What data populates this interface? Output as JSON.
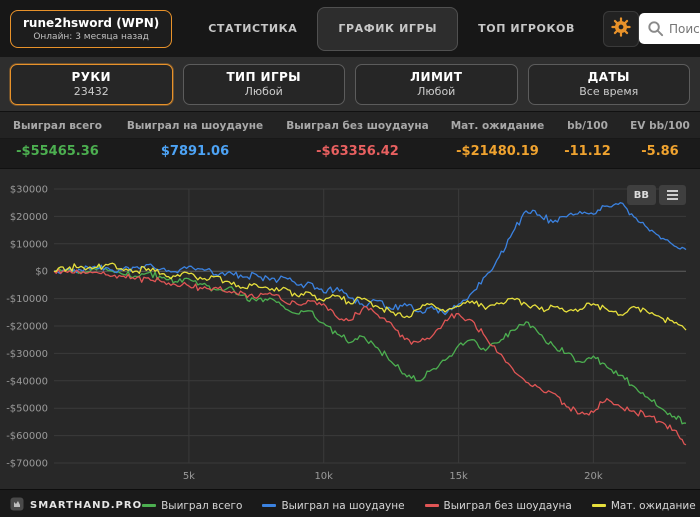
{
  "topbar": {
    "player_button": {
      "name": "rune2hsword (WPN)",
      "status": "Онлайн: 3 месяца назад"
    },
    "tabs": [
      {
        "label": "СТАТИСТИКА",
        "active": false
      },
      {
        "label": "ГРАФИК ИГРЫ",
        "active": true
      },
      {
        "label": "ТОП ИГРОКОВ",
        "active": false
      }
    ],
    "search": {
      "placeholder": "Поиск игрока"
    }
  },
  "filters": [
    {
      "title": "РУКИ",
      "value": "23432",
      "active": true
    },
    {
      "title": "ТИП ИГРЫ",
      "value": "Любой",
      "active": false
    },
    {
      "title": "ЛИМИТ",
      "value": "Любой",
      "active": false
    },
    {
      "title": "ДАТЫ",
      "value": "Все время",
      "active": false
    }
  ],
  "stats": {
    "columns": [
      {
        "label": "Выиграл всего",
        "value": "-$55465.36",
        "color": "#4caf50"
      },
      {
        "label": "Выиграл на шоудауне",
        "value": "$7891.06",
        "color": "#4da3f5"
      },
      {
        "label": "Выиграл без шоудауна",
        "value": "-$63356.42",
        "color": "#e86060"
      },
      {
        "label": "Мат. ожидание",
        "value": "-$21480.19",
        "color": "#f0a32f"
      },
      {
        "label": "bb/100",
        "value": "-11.12",
        "color": "#f0a32f"
      },
      {
        "label": "EV bb/100",
        "value": "-5.86",
        "color": "#f0a32f"
      }
    ]
  },
  "chart_controls": {
    "bb_label": "BB"
  },
  "chart_data": {
    "type": "line",
    "x_max": 23432,
    "ylim": [
      -70000,
      30000
    ],
    "y_tick_step": 10000,
    "y_tick_labels": [
      "$30000",
      "$20000",
      "$10000",
      "$0",
      "-$10000",
      "-$20000",
      "-$30000",
      "-$40000",
      "-$50000",
      "-$60000",
      "-$70000"
    ],
    "x_tick_values": [
      5000,
      10000,
      15000,
      20000
    ],
    "x_tick_labels": [
      "5k",
      "10k",
      "15k",
      "20k"
    ],
    "grid": true,
    "legend_position": "bottom",
    "x": [
      0,
      500,
      1000,
      1500,
      2000,
      2500,
      3000,
      3500,
      4000,
      4500,
      5000,
      5500,
      6000,
      6500,
      7000,
      7500,
      8000,
      8500,
      9000,
      9500,
      10000,
      10500,
      11000,
      11500,
      12000,
      12500,
      13000,
      13500,
      14000,
      14500,
      15000,
      15500,
      16000,
      16500,
      17000,
      17500,
      18000,
      18500,
      19000,
      19500,
      20000,
      20500,
      21000,
      21500,
      22000,
      22500,
      23000,
      23432
    ],
    "series": [
      {
        "name": "Выиграл всего",
        "color": "#4caf50",
        "y": [
          0,
          600,
          -400,
          900,
          300,
          -900,
          -1800,
          -600,
          -2400,
          -3800,
          -2800,
          -4800,
          -6800,
          -5800,
          -8800,
          -10800,
          -9800,
          -12800,
          -15500,
          -14500,
          -19000,
          -23000,
          -26000,
          -24000,
          -28000,
          -33000,
          -37500,
          -40000,
          -36000,
          -32500,
          -27000,
          -25000,
          -29000,
          -26000,
          -21500,
          -18500,
          -23000,
          -27000,
          -30000,
          -33000,
          -31000,
          -35000,
          -38000,
          -42000,
          -46000,
          -50000,
          -53000,
          -55465.36
        ]
      },
      {
        "name": "Выиграл на шоудауне",
        "color": "#3b82e0",
        "y": [
          0,
          1000,
          400,
          1800,
          1200,
          400,
          1400,
          2400,
          900,
          -200,
          1800,
          800,
          -1200,
          -200,
          -2200,
          -1200,
          -3200,
          -2200,
          -5000,
          -4200,
          -7800,
          -6000,
          -9800,
          -12800,
          -10800,
          -13800,
          -11800,
          -14800,
          -12800,
          -15800,
          -12000,
          -7800,
          -1800,
          5200,
          14000,
          22000,
          20500,
          17800,
          19800,
          21800,
          20800,
          23800,
          25000,
          19800,
          15800,
          11800,
          9200,
          7891.06
        ]
      },
      {
        "name": "Выиграл без шоудауна",
        "color": "#e05555",
        "y": [
          0,
          -400,
          -900,
          -400,
          -1400,
          -1900,
          -2900,
          -2400,
          -3900,
          -4900,
          -5400,
          -6400,
          -5900,
          -7400,
          -7900,
          -9900,
          -7900,
          -10900,
          -11900,
          -10900,
          -11900,
          -16900,
          -17900,
          -12900,
          -15900,
          -18900,
          -24900,
          -25900,
          -23900,
          -17900,
          -15500,
          -18000,
          -24000,
          -30000,
          -35500,
          -40500,
          -42500,
          -44500,
          -49500,
          -52000,
          -51500,
          -46500,
          -49500,
          -51000,
          -53000,
          -55000,
          -58000,
          -63356.42
        ]
      },
      {
        "name": "Мат. ожидание",
        "color": "#e6df3c",
        "y": [
          0,
          800,
          1800,
          1300,
          2300,
          900,
          0,
          900,
          -900,
          -1900,
          -900,
          -2900,
          -1900,
          -3900,
          -5900,
          -4900,
          -6900,
          -5900,
          -8900,
          -7900,
          -10900,
          -8900,
          -11900,
          -9900,
          -12900,
          -14900,
          -16900,
          -13900,
          -11900,
          -14900,
          -12900,
          -10900,
          -13900,
          -11900,
          -9900,
          -11900,
          -13900,
          -12900,
          -14900,
          -13900,
          -11900,
          -13900,
          -15900,
          -12900,
          -14900,
          -16900,
          -18900,
          -21480.19
        ]
      }
    ]
  },
  "footer": {
    "brand": "SMARTHAND.PRO"
  }
}
